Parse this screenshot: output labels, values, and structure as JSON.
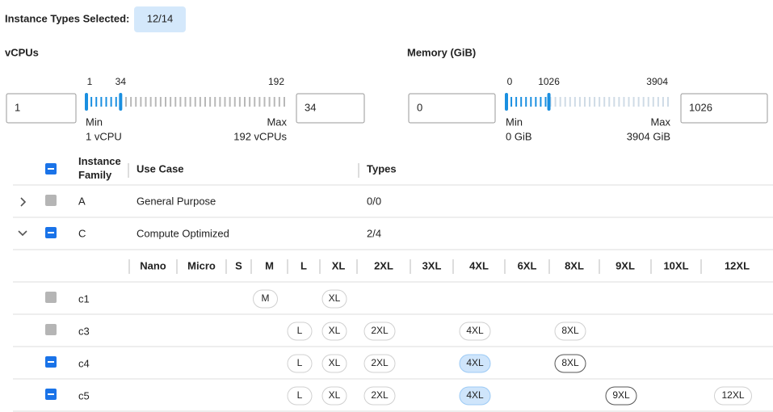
{
  "header": {
    "label": "Instance Types Selected:",
    "badge": "12/14"
  },
  "sliders": [
    {
      "title": "vCPUs",
      "min": 1,
      "max": 192,
      "low": 1,
      "high": 34,
      "min_label": "Min",
      "max_label": "Max",
      "min_text": "1 vCPU",
      "max_text": "192 vCPUs"
    },
    {
      "title": "Memory (GiB)",
      "min": 0,
      "max": 3904,
      "low": 0,
      "high": 1026,
      "min_label": "Min",
      "max_label": "Max",
      "min_text": "0 GiB",
      "max_text": "3904 GiB"
    }
  ],
  "table": {
    "columns": [
      "Instance Family",
      "Use Case",
      "Types"
    ],
    "header_check": "partial",
    "families": [
      {
        "chevron": "collapsed",
        "check": "disabled",
        "name": "A",
        "use_case": "General Purpose",
        "types": "0/0"
      },
      {
        "chevron": "expanded",
        "check": "partial",
        "name": "C",
        "use_case": "Compute Optimized",
        "types": "2/4"
      }
    ],
    "sizes": [
      "Nano",
      "Micro",
      "S",
      "M",
      "L",
      "XL",
      "2XL",
      "3XL",
      "4XL",
      "6XL",
      "8XL",
      "9XL",
      "10XL",
      "12XL"
    ],
    "instances": [
      {
        "name": "c1",
        "check": "disabled",
        "pills": [
          {
            "label": "M",
            "state": "disabled"
          },
          {
            "label": "XL",
            "state": "disabled"
          }
        ]
      },
      {
        "name": "c3",
        "check": "disabled",
        "pills": [
          {
            "label": "L",
            "state": "disabled"
          },
          {
            "label": "XL",
            "state": "disabled"
          },
          {
            "label": "2XL",
            "state": "disabled"
          },
          {
            "label": "4XL",
            "state": "disabled"
          },
          {
            "label": "8XL",
            "state": "disabled"
          }
        ]
      },
      {
        "name": "c4",
        "check": "partial",
        "pills": [
          {
            "label": "L",
            "state": "disabled"
          },
          {
            "label": "XL",
            "state": "disabled"
          },
          {
            "label": "2XL",
            "state": "disabled"
          },
          {
            "label": "4XL",
            "state": "selected"
          },
          {
            "label": "8XL",
            "state": "available"
          }
        ]
      },
      {
        "name": "c5",
        "check": "partial",
        "pills": [
          {
            "label": "L",
            "state": "disabled"
          },
          {
            "label": "XL",
            "state": "disabled"
          },
          {
            "label": "2XL",
            "state": "disabled"
          },
          {
            "label": "4XL",
            "state": "selected"
          },
          {
            "label": "9XL",
            "state": "available"
          },
          {
            "label": "12XL",
            "state": "disabled"
          }
        ]
      }
    ]
  }
}
